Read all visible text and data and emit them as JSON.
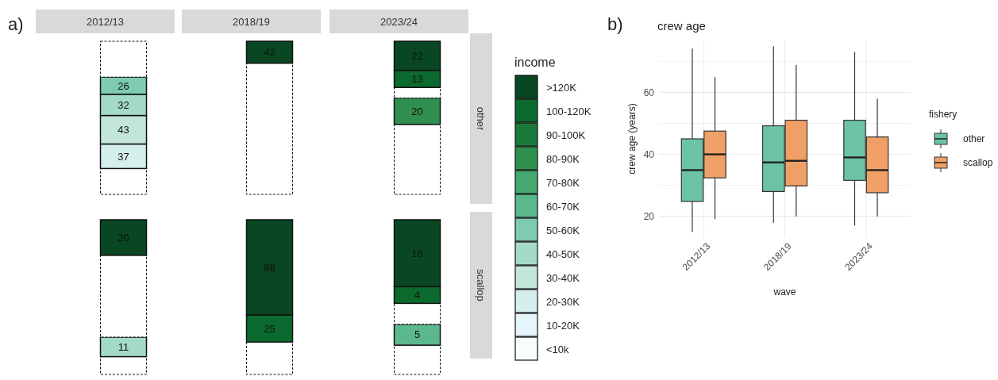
{
  "chart_data": [
    {
      "type": "bar",
      "stacked": true,
      "categories": [
        null
      ],
      "title": "2012/13",
      "annotations": [
        "a)"
      ],
      "series": [
        {
          "color": "#ffffff",
          "line_style": "dashed",
          "values": [
            39
          ]
        },
        {
          "color": "#d5efed",
          "values": [
            37
          ],
          "value_labels": [
            "37"
          ]
        },
        {
          "color": "#c2e6dc",
          "values": [
            43
          ],
          "value_labels": [
            "43"
          ]
        },
        {
          "color": "#a3dac8",
          "values": [
            32
          ],
          "value_labels": [
            "32"
          ]
        },
        {
          "color": "#7fcbb2",
          "values": [
            26
          ],
          "value_labels": [
            "26"
          ]
        },
        {
          "color": "#ffffff",
          "line_style": "dashed",
          "values": [
            54
          ]
        }
      ]
    },
    {
      "type": "bar",
      "stacked": true,
      "categories": [
        null
      ],
      "title": "2018/19",
      "series": [
        {
          "color": "#ffffff",
          "line_style": "dashed",
          "values": [
            251
          ]
        },
        {
          "color": "#084722",
          "values": [
            42
          ],
          "value_labels": [
            "42"
          ]
        }
      ]
    },
    {
      "type": "bar",
      "stacked": true,
      "categories": [
        null
      ],
      "title": "2023/24",
      "y2label": "other",
      "legend": "right",
      "legend_title": "income",
      "series": [
        {
          "color": "#ffffff",
          "line_style": "dashed",
          "values": [
            53
          ]
        },
        {
          "name": "<10k",
          "color": "#f7fcfd",
          "values": [
            null
          ]
        },
        {
          "name": "10-20K",
          "color": "#e5f5f9",
          "values": [
            null
          ]
        },
        {
          "name": "20-30K",
          "color": "#d5efed",
          "values": [
            null
          ]
        },
        {
          "name": "30-40K",
          "color": "#c2e6dc",
          "values": [
            null
          ]
        },
        {
          "name": "40-50K",
          "color": "#a3dac8",
          "values": [
            null
          ]
        },
        {
          "name": "50-60K",
          "color": "#7fcbb2",
          "values": [
            null
          ]
        },
        {
          "name": "60-70K",
          "color": "#5cb98d",
          "values": [
            null
          ]
        },
        {
          "name": "70-80K",
          "color": "#45a870",
          "values": [
            null
          ]
        },
        {
          "name": "80-90K",
          "color": "#2f8f4f",
          "values": [
            20
          ],
          "value_labels": [
            "20"
          ]
        },
        {
          "color": "#ffffff",
          "line_style": "dashed",
          "values": [
            8
          ]
        },
        {
          "name": "90-100K",
          "color": "#1b7a3b",
          "values": [
            null
          ]
        },
        {
          "name": "100-120K",
          "color": "#0b6a2e",
          "values": [
            13
          ],
          "value_labels": [
            "13"
          ]
        },
        {
          "name": ">120K",
          "color": "#084722",
          "values": [
            22
          ],
          "value_labels": [
            "22"
          ]
        }
      ]
    },
    {
      "type": "bar",
      "stacked": true,
      "categories": [
        null
      ],
      "series": [
        {
          "color": "#ffffff",
          "line_style": "dashed",
          "values": [
            10
          ]
        },
        {
          "color": "#a3dac8",
          "values": [
            11
          ],
          "value_labels": [
            "11"
          ]
        },
        {
          "color": "#ffffff",
          "line_style": "dashed",
          "values": [
            46
          ]
        },
        {
          "color": "#084722",
          "values": [
            20
          ],
          "value_labels": [
            "20"
          ]
        }
      ]
    },
    {
      "type": "bar",
      "stacked": true,
      "categories": [
        null
      ],
      "series": [
        {
          "color": "#ffffff",
          "line_style": "dashed",
          "values": [
            30
          ]
        },
        {
          "color": "#0b6a2e",
          "values": [
            25
          ],
          "value_labels": [
            "25"
          ]
        },
        {
          "color": "#084722",
          "values": [
            88
          ],
          "value_labels": [
            "88"
          ]
        }
      ]
    },
    {
      "type": "bar",
      "stacked": true,
      "categories": [
        null
      ],
      "y2label": "scallop",
      "series": [
        {
          "color": "#ffffff",
          "line_style": "dashed",
          "values": [
            7
          ]
        },
        {
          "color": "#5cb98d",
          "values": [
            5
          ],
          "value_labels": [
            "5"
          ]
        },
        {
          "color": "#ffffff",
          "line_style": "dashed",
          "values": [
            5
          ]
        },
        {
          "color": "#0b6a2e",
          "values": [
            4
          ],
          "value_labels": [
            "4"
          ]
        },
        {
          "color": "#084722",
          "values": [
            16
          ],
          "value_labels": [
            "16"
          ]
        }
      ]
    },
    {
      "type": "box",
      "title": "crew age",
      "annotations": [
        "b)"
      ],
      "xlabel": "wave",
      "ylabel": "crew age (years)",
      "categories": [
        "2012/13",
        "2018/19",
        "2023/24"
      ],
      "ylim": [
        13,
        77
      ],
      "yticks": [
        20,
        {
          "value": 30,
          "label": null
        },
        40,
        {
          "value": 50,
          "label": null
        },
        60,
        {
          "value": 70,
          "label": null
        }
      ],
      "grid": true,
      "legend": "right",
      "legend_title": "fishery",
      "series": [
        {
          "name": "other",
          "color": "#6cc4a4",
          "boxes": [
            {
              "low": 15,
              "q1": 24.8,
              "median": 34.9,
              "q3": 45,
              "high": 74.1
            },
            {
              "low": 17.9,
              "q1": 28,
              "median": 37.4,
              "q3": 49.2,
              "high": 74.9
            },
            {
              "low": 17,
              "q1": 31.6,
              "median": 39,
              "q3": 51,
              "high": 73
            }
          ]
        },
        {
          "name": "scallop",
          "color": "#f0a066",
          "boxes": [
            {
              "low": 19.1,
              "q1": 32.4,
              "median": 40,
              "q3": 47.5,
              "high": 64.9
            },
            {
              "low": 20,
              "q1": 29.8,
              "median": 37.9,
              "q3": 51,
              "high": 68.9
            },
            {
              "low": 20,
              "q1": 27.6,
              "median": 34.9,
              "q3": 45.6,
              "high": 58
            }
          ]
        }
      ]
    }
  ]
}
